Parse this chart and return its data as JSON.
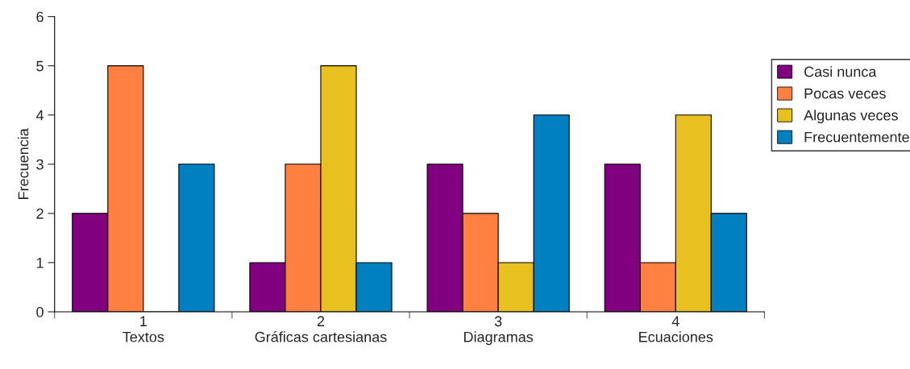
{
  "chart_data": {
    "type": "bar",
    "ylabel": "Frecuencia",
    "categories": [
      "1\nTextos",
      "2\nGráficas cartesianas",
      "3\nDiagramas",
      "4\nEcuaciones"
    ],
    "series": [
      {
        "name": "Casi nunca",
        "color": "#800080",
        "values": [
          2,
          1,
          3,
          3
        ]
      },
      {
        "name": "Pocas veces",
        "color": "#ff8040",
        "values": [
          5,
          3,
          2,
          1
        ]
      },
      {
        "name": "Algunas veces",
        "color": "#e8c020",
        "values": [
          0,
          5,
          1,
          4
        ]
      },
      {
        "name": "Frecuentemente",
        "color": "#0080c0",
        "values": [
          3,
          1,
          4,
          2
        ]
      }
    ],
    "ylim": [
      0,
      6
    ],
    "yticks": [
      0,
      1,
      2,
      3,
      4,
      5,
      6
    ],
    "grid": false,
    "legend": "right"
  }
}
